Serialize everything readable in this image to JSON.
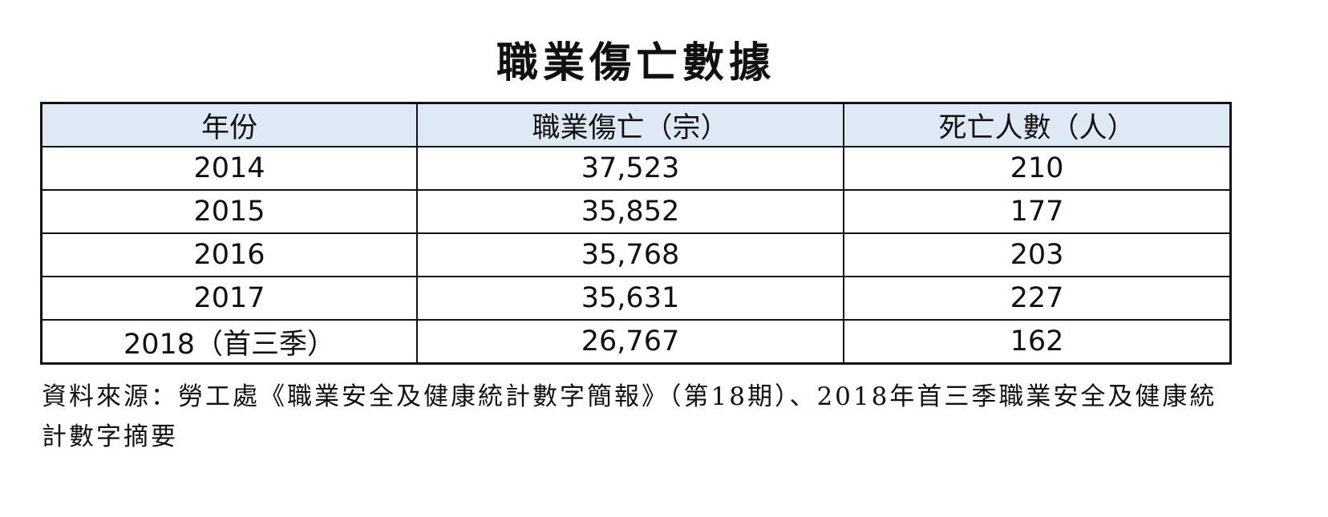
{
  "title": "職業傷亡數據",
  "table": {
    "headers": [
      "年份",
      "職業傷亡（宗）",
      "死亡人數（人）"
    ],
    "rows": [
      [
        "2014",
        "37,523",
        "210"
      ],
      [
        "2015",
        "35,852",
        "177"
      ],
      [
        "2016",
        "35,768",
        "203"
      ],
      [
        "2017",
        "35,631",
        "227"
      ],
      [
        "2018（首三季）",
        "26,767",
        "162"
      ]
    ],
    "header_bg": "#dfe8f5"
  },
  "source": "資料來源：勞工處《職業安全及健康統計數字簡報》（第18期）、2018年首三季職業安全及健康統計數字摘要"
}
